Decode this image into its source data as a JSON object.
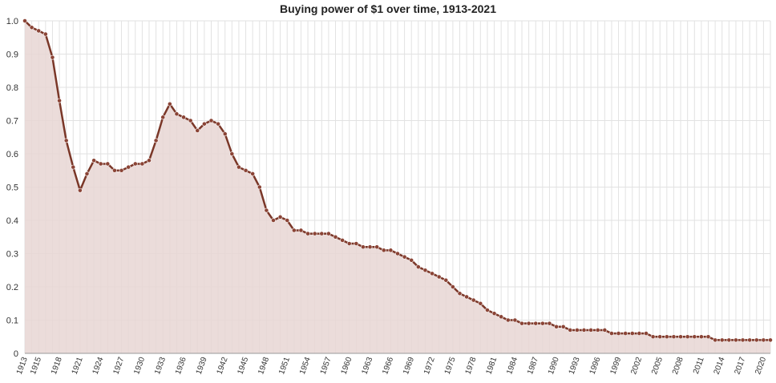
{
  "chart_data": {
    "type": "area",
    "title": "Buying power of $1 over time, 1913-2021",
    "xlabel": "",
    "ylabel": "",
    "ylim": [
      0,
      1.0
    ],
    "yticks": [
      0,
      0.1,
      0.2,
      0.3,
      0.4,
      0.5,
      0.6,
      0.7,
      0.8,
      0.9,
      1.0
    ],
    "ytick_labels": [
      "0",
      "0.1",
      "0.2",
      "0.3",
      "0.4",
      "0.5",
      "0.6",
      "0.7",
      "0.8",
      "0.9",
      "1.0"
    ],
    "xtick_labels": [
      "1913",
      "1915",
      "1918",
      "1921",
      "1924",
      "1927",
      "1930",
      "1933",
      "1936",
      "1939",
      "1942",
      "1945",
      "1948",
      "1951",
      "1954",
      "1957",
      "1960",
      "1963",
      "1966",
      "1969",
      "1972",
      "1975",
      "1978",
      "1981",
      "1984",
      "1987",
      "1990",
      "1993",
      "1996",
      "1999",
      "2002",
      "2005",
      "2008",
      "2011",
      "2014",
      "2017",
      "2020"
    ],
    "grid": true,
    "colors": {
      "line": "#7a3728",
      "fill": "#e8d6d3",
      "marker": "#8b4436"
    },
    "x": [
      1913,
      1914,
      1915,
      1916,
      1917,
      1918,
      1919,
      1920,
      1921,
      1922,
      1923,
      1924,
      1925,
      1926,
      1927,
      1928,
      1929,
      1930,
      1931,
      1932,
      1933,
      1934,
      1935,
      1936,
      1937,
      1938,
      1939,
      1940,
      1941,
      1942,
      1943,
      1944,
      1945,
      1946,
      1947,
      1948,
      1949,
      1950,
      1951,
      1952,
      1953,
      1954,
      1955,
      1956,
      1957,
      1958,
      1959,
      1960,
      1961,
      1962,
      1963,
      1964,
      1965,
      1966,
      1967,
      1968,
      1969,
      1970,
      1971,
      1972,
      1973,
      1974,
      1975,
      1976,
      1977,
      1978,
      1979,
      1980,
      1981,
      1982,
      1983,
      1984,
      1985,
      1986,
      1987,
      1988,
      1989,
      1990,
      1991,
      1992,
      1993,
      1994,
      1995,
      1996,
      1997,
      1998,
      1999,
      2000,
      2001,
      2002,
      2003,
      2004,
      2005,
      2006,
      2007,
      2008,
      2009,
      2010,
      2011,
      2012,
      2013,
      2014,
      2015,
      2016,
      2017,
      2018,
      2019,
      2020,
      2021
    ],
    "values": [
      1.0,
      0.98,
      0.97,
      0.96,
      0.89,
      0.76,
      0.64,
      0.56,
      0.49,
      0.54,
      0.58,
      0.57,
      0.57,
      0.55,
      0.55,
      0.56,
      0.57,
      0.57,
      0.58,
      0.64,
      0.71,
      0.75,
      0.72,
      0.71,
      0.7,
      0.67,
      0.69,
      0.7,
      0.69,
      0.66,
      0.6,
      0.56,
      0.55,
      0.54,
      0.5,
      0.43,
      0.4,
      0.41,
      0.4,
      0.37,
      0.37,
      0.36,
      0.36,
      0.36,
      0.36,
      0.35,
      0.34,
      0.33,
      0.33,
      0.32,
      0.32,
      0.32,
      0.31,
      0.31,
      0.3,
      0.29,
      0.28,
      0.26,
      0.25,
      0.24,
      0.23,
      0.22,
      0.2,
      0.18,
      0.17,
      0.16,
      0.15,
      0.13,
      0.12,
      0.11,
      0.1,
      0.1,
      0.09,
      0.09,
      0.09,
      0.09,
      0.09,
      0.08,
      0.08,
      0.07,
      0.07,
      0.07,
      0.07,
      0.07,
      0.07,
      0.06,
      0.06,
      0.06,
      0.06,
      0.06,
      0.06,
      0.05,
      0.05,
      0.05,
      0.05,
      0.05,
      0.05,
      0.05,
      0.05,
      0.05,
      0.04,
      0.04,
      0.04,
      0.04,
      0.04,
      0.04,
      0.04,
      0.04,
      0.04
    ]
  }
}
